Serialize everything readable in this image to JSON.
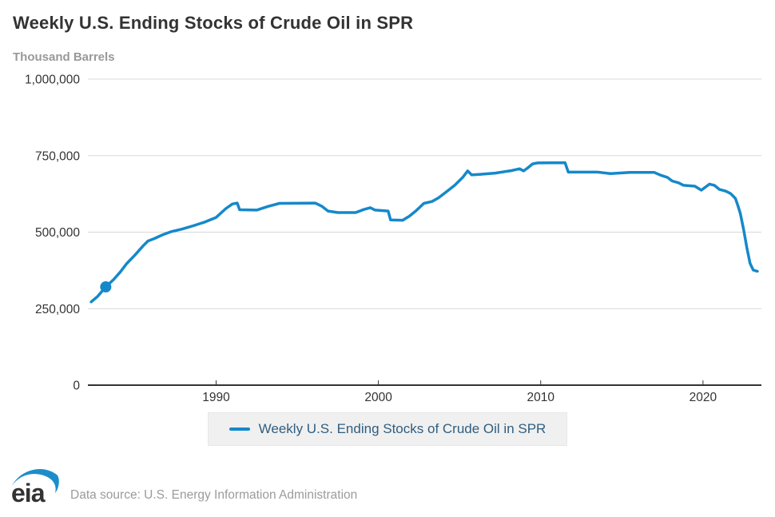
{
  "header": {
    "title": "Weekly U.S. Ending Stocks of Crude Oil in SPR",
    "units_label": "Thousand Barrels"
  },
  "legend": {
    "label": "Weekly U.S. Ending Stocks of Crude Oil in SPR"
  },
  "footer": {
    "logo_text": "eia",
    "source": "Data source: U.S. Energy Information Administration"
  },
  "colors": {
    "line": "#1588ca",
    "marker": "#1588ca",
    "legend_text": "#2f5e7f",
    "title": "#333333",
    "muted": "#999999",
    "gridline": "#d8d8d8",
    "axis": "#333333",
    "tick_label": "#333333",
    "legend_bg": "#f0f0f0",
    "legend_border": "#e7e7e7"
  },
  "chart_data": {
    "type": "line",
    "title": "Weekly U.S. Ending Stocks of Crude Oil in SPR",
    "xlabel": "",
    "ylabel": "Thousand Barrels",
    "ylim": [
      0,
      1000000
    ],
    "xlim": [
      1982.1,
      2023.6
    ],
    "yticks": [
      0,
      250000,
      500000,
      750000,
      1000000
    ],
    "ytick_labels": [
      "0",
      "250,000",
      "500,000",
      "750,000",
      "1,000,000"
    ],
    "xticks": [
      1990,
      2000,
      2010,
      2020
    ],
    "xtick_labels": [
      "1990",
      "2000",
      "2010",
      "2020"
    ],
    "grid": "horizontal-only",
    "legend_position": "bottom-center",
    "marker": {
      "x": 1983.2,
      "y": 321000
    },
    "series": [
      {
        "name": "Weekly U.S. Ending Stocks of Crude Oil in SPR",
        "color": "#1588ca",
        "points": [
          [
            1982.3,
            272000
          ],
          [
            1982.7,
            290000
          ],
          [
            1983.2,
            321000
          ],
          [
            1983.7,
            346000
          ],
          [
            1984.1,
            370000
          ],
          [
            1984.5,
            398000
          ],
          [
            1985.0,
            425000
          ],
          [
            1985.5,
            455000
          ],
          [
            1985.8,
            471000
          ],
          [
            1986.2,
            479000
          ],
          [
            1986.7,
            491000
          ],
          [
            1987.2,
            501000
          ],
          [
            1987.9,
            510000
          ],
          [
            1988.6,
            521000
          ],
          [
            1989.3,
            533000
          ],
          [
            1990.0,
            548000
          ],
          [
            1990.6,
            577000
          ],
          [
            1991.0,
            592000
          ],
          [
            1991.3,
            595000
          ],
          [
            1991.45,
            573000
          ],
          [
            1992.5,
            572000
          ],
          [
            1993.2,
            584000
          ],
          [
            1993.9,
            594000
          ],
          [
            1996.1,
            595000
          ],
          [
            1996.5,
            585000
          ],
          [
            1996.9,
            569000
          ],
          [
            1997.5,
            564000
          ],
          [
            1998.6,
            564000
          ],
          [
            1999.1,
            574000
          ],
          [
            1999.5,
            580000
          ],
          [
            1999.8,
            572000
          ],
          [
            2000.6,
            569000
          ],
          [
            2000.75,
            540000
          ],
          [
            2001.5,
            539000
          ],
          [
            2001.9,
            552000
          ],
          [
            2002.3,
            569000
          ],
          [
            2002.8,
            594000
          ],
          [
            2003.3,
            600000
          ],
          [
            2003.7,
            612000
          ],
          [
            2004.2,
            632000
          ],
          [
            2004.7,
            653000
          ],
          [
            2005.2,
            679000
          ],
          [
            2005.5,
            700000
          ],
          [
            2005.75,
            687000
          ],
          [
            2006.3,
            689000
          ],
          [
            2007.2,
            693000
          ],
          [
            2008.2,
            701000
          ],
          [
            2008.7,
            707000
          ],
          [
            2008.95,
            700000
          ],
          [
            2009.2,
            710000
          ],
          [
            2009.5,
            723000
          ],
          [
            2009.8,
            726000
          ],
          [
            2011.5,
            727000
          ],
          [
            2011.7,
            696000
          ],
          [
            2013.5,
            696000
          ],
          [
            2014.3,
            691000
          ],
          [
            2015.5,
            695000
          ],
          [
            2017.0,
            695000
          ],
          [
            2017.4,
            686000
          ],
          [
            2017.8,
            679000
          ],
          [
            2018.1,
            667000
          ],
          [
            2018.5,
            661000
          ],
          [
            2018.8,
            653000
          ],
          [
            2019.5,
            650000
          ],
          [
            2019.9,
            637000
          ],
          [
            2020.4,
            657000
          ],
          [
            2020.7,
            653000
          ],
          [
            2021.0,
            640000
          ],
          [
            2021.4,
            634000
          ],
          [
            2021.7,
            626000
          ],
          [
            2022.0,
            610000
          ],
          [
            2022.15,
            587000
          ],
          [
            2022.3,
            561000
          ],
          [
            2022.5,
            509000
          ],
          [
            2022.7,
            450000
          ],
          [
            2022.9,
            398000
          ],
          [
            2023.1,
            376000
          ],
          [
            2023.35,
            372000
          ]
        ]
      }
    ]
  }
}
